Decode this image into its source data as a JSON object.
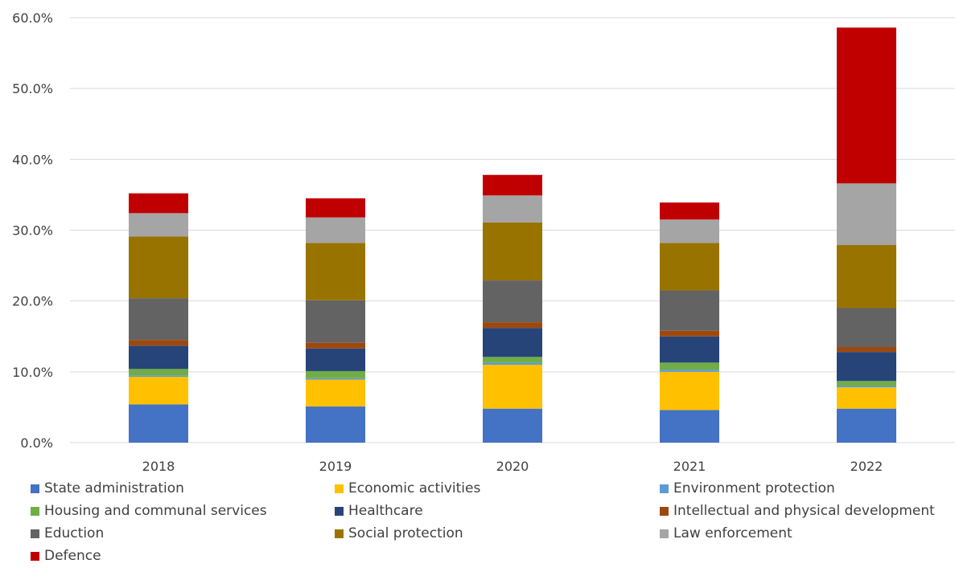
{
  "chart_data": {
    "type": "bar",
    "stacked": true,
    "categories": [
      "2018",
      "2019",
      "2020",
      "2021",
      "2022"
    ],
    "ylim": [
      0,
      60
    ],
    "yticks": [
      "0.0%",
      "10.0%",
      "20.0%",
      "30.0%",
      "40.0%",
      "50.0%",
      "60.0%"
    ],
    "grid": true,
    "legend_position": "bottom",
    "series": [
      {
        "name": "State administration",
        "color": "#4472C4",
        "values": [
          5.4,
          5.1,
          4.8,
          4.6,
          4.8
        ]
      },
      {
        "name": "Economic activities",
        "color": "#FFC000",
        "values": [
          3.9,
          3.8,
          6.2,
          5.4,
          3.0
        ]
      },
      {
        "name": "Environment protection",
        "color": "#5B9BD5",
        "values": [
          0.2,
          0.2,
          0.3,
          0.3,
          0.2
        ]
      },
      {
        "name": "Housing and communal services",
        "color": "#70AD47",
        "values": [
          0.9,
          1.0,
          0.8,
          1.0,
          0.7
        ]
      },
      {
        "name": "Healthcare",
        "color": "#264478",
        "values": [
          3.3,
          3.2,
          4.1,
          3.7,
          4.1
        ]
      },
      {
        "name": "Intellectual and physical development",
        "color": "#9E480E",
        "values": [
          0.8,
          0.8,
          0.8,
          0.8,
          0.7
        ]
      },
      {
        "name": "Eduction",
        "color": "#636363",
        "values": [
          5.9,
          6.0,
          5.9,
          5.7,
          5.5
        ]
      },
      {
        "name": "Social protection",
        "color": "#997300",
        "values": [
          8.7,
          8.1,
          8.2,
          6.7,
          8.9
        ]
      },
      {
        "name": "Law enforcement",
        "color": "#A5A5A5",
        "values": [
          3.3,
          3.6,
          3.8,
          3.3,
          8.7
        ]
      },
      {
        "name": "Defence",
        "color": "#C00000",
        "values": [
          2.8,
          2.7,
          2.9,
          2.4,
          22.0
        ]
      }
    ]
  }
}
